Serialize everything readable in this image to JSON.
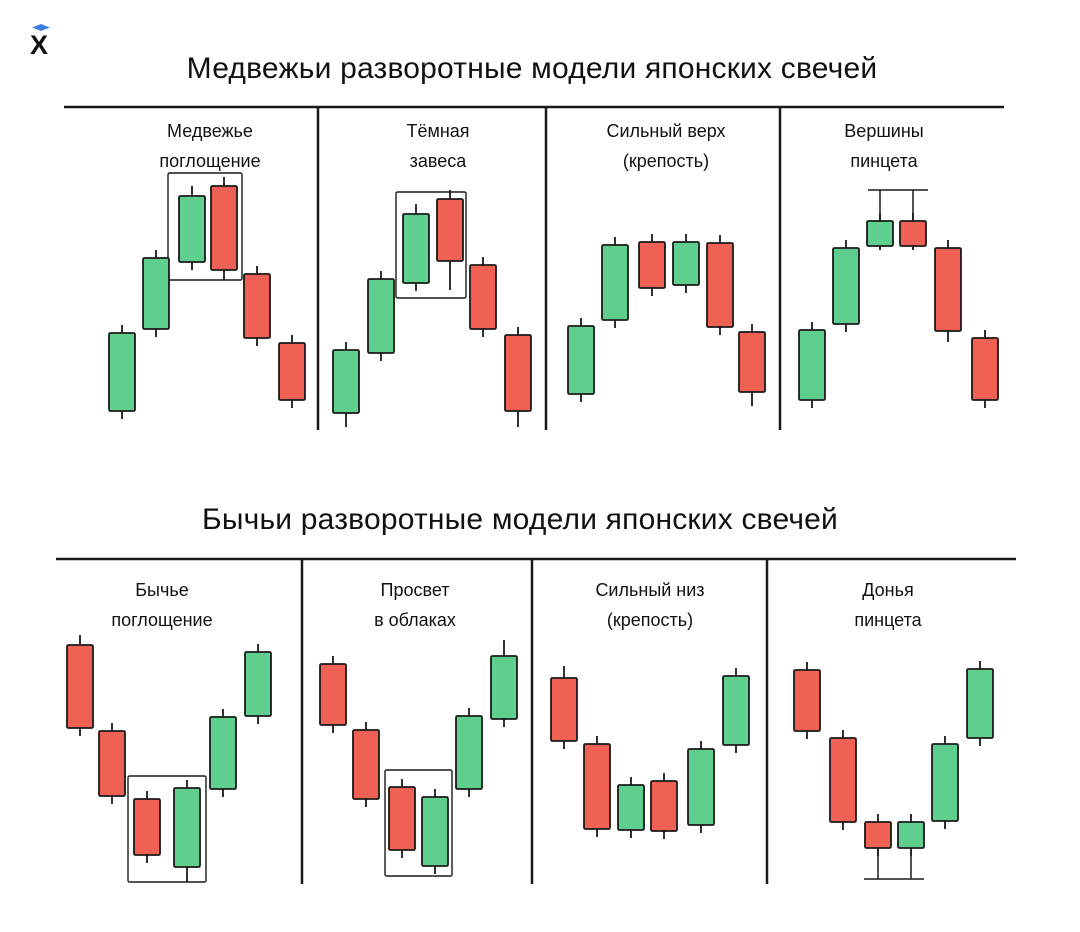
{
  "logo": {
    "icon": "mortarboard-x-logo",
    "text": "X"
  },
  "colors": {
    "bull": "#5fcf8e",
    "bear": "#ef6152",
    "outline": "#1a1a1a"
  },
  "sections": [
    {
      "title": "Медвежьи разворотные модели японских свечей",
      "patterns": [
        {
          "label": [
            "Медвежье",
            "поглощение"
          ]
        },
        {
          "label": [
            "Тёмная",
            "завеса"
          ]
        },
        {
          "label": [
            "Сильный верх",
            "(крепость)"
          ]
        },
        {
          "label": [
            "Вершины",
            "пинцета"
          ]
        }
      ]
    },
    {
      "title": "Бычьи разворотные модели японских свечей",
      "patterns": [
        {
          "label": [
            "Бычье",
            "поглощение"
          ]
        },
        {
          "label": [
            "Просвет",
            "в облаках"
          ]
        },
        {
          "label": [
            "Сильный низ",
            "(крепость)"
          ]
        },
        {
          "label": [
            "Донья",
            "пинцета"
          ]
        }
      ]
    }
  ]
}
